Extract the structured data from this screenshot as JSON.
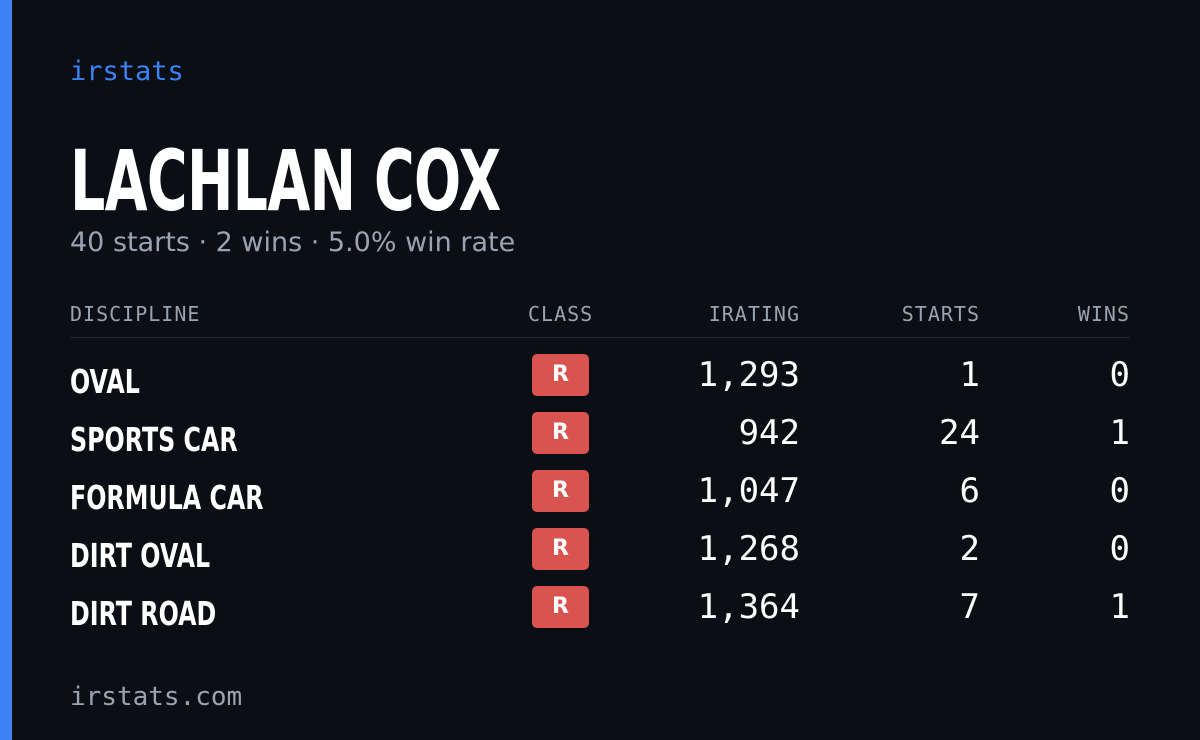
{
  "brand": "irstats",
  "driver": {
    "name": "LACHLAN COX",
    "summary": "40 starts · 2 wins · 5.0% win rate"
  },
  "table": {
    "headers": [
      "DISCIPLINE",
      "CLASS",
      "IRATING",
      "STARTS",
      "WINS"
    ],
    "rows": [
      [
        "OVAL",
        "R",
        "1,293",
        "1",
        "0"
      ],
      [
        "SPORTS CAR",
        "R",
        "942",
        "24",
        "1"
      ],
      [
        "FORMULA CAR",
        "R",
        "1,047",
        "6",
        "0"
      ],
      [
        "DIRT OVAL",
        "R",
        "1,268",
        "2",
        "0"
      ],
      [
        "DIRT ROAD",
        "R",
        "1,364",
        "7",
        "1"
      ]
    ]
  },
  "footer": "irstats.com"
}
